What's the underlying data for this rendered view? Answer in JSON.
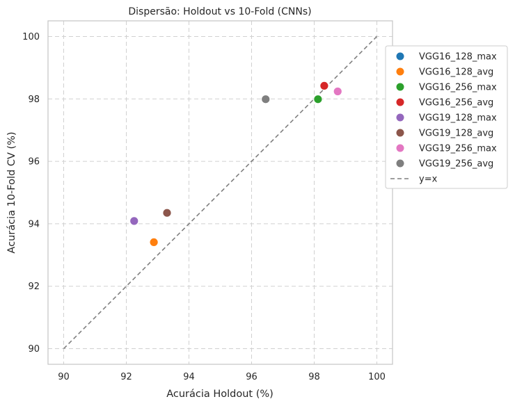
{
  "chart_data": {
    "type": "scatter",
    "title": "Dispersão: Holdout vs 10-Fold (CNNs)",
    "xlabel": "Acurácia Holdout (%)",
    "ylabel": "Acurácia 10-Fold CV (%)",
    "xlim": [
      89.5,
      100.5
    ],
    "ylim": [
      89.5,
      100.5
    ],
    "xticks": [
      90,
      92,
      94,
      96,
      98,
      100
    ],
    "yticks": [
      90,
      92,
      94,
      96,
      98,
      100
    ],
    "grid": true,
    "legend_position": "outside-right",
    "series": [
      {
        "name": "VGG16_128_max",
        "color": "#1f77b4",
        "points": []
      },
      {
        "name": "VGG16_128_avg",
        "color": "#ff7f0e",
        "points": [
          {
            "x": 92.88,
            "y": 93.41
          }
        ]
      },
      {
        "name": "VGG16_256_max",
        "color": "#2ca02c",
        "points": [
          {
            "x": 98.12,
            "y": 97.99
          }
        ]
      },
      {
        "name": "VGG16_256_avg",
        "color": "#d62728",
        "points": [
          {
            "x": 98.32,
            "y": 98.42
          }
        ]
      },
      {
        "name": "VGG19_128_max",
        "color": "#9467bd",
        "points": [
          {
            "x": 92.25,
            "y": 94.09
          }
        ]
      },
      {
        "name": "VGG19_128_avg",
        "color": "#8c564b",
        "points": [
          {
            "x": 93.3,
            "y": 94.35
          }
        ]
      },
      {
        "name": "VGG19_256_max",
        "color": "#e377c2",
        "points": [
          {
            "x": 98.75,
            "y": 98.24
          }
        ]
      },
      {
        "name": "VGG19_256_avg",
        "color": "#7f7f7f",
        "points": [
          {
            "x": 96.45,
            "y": 97.99
          }
        ]
      }
    ],
    "reference_line": {
      "name": "y=x",
      "color": "#7f7f7f",
      "from": [
        90,
        90
      ],
      "to": [
        100,
        100
      ]
    }
  }
}
